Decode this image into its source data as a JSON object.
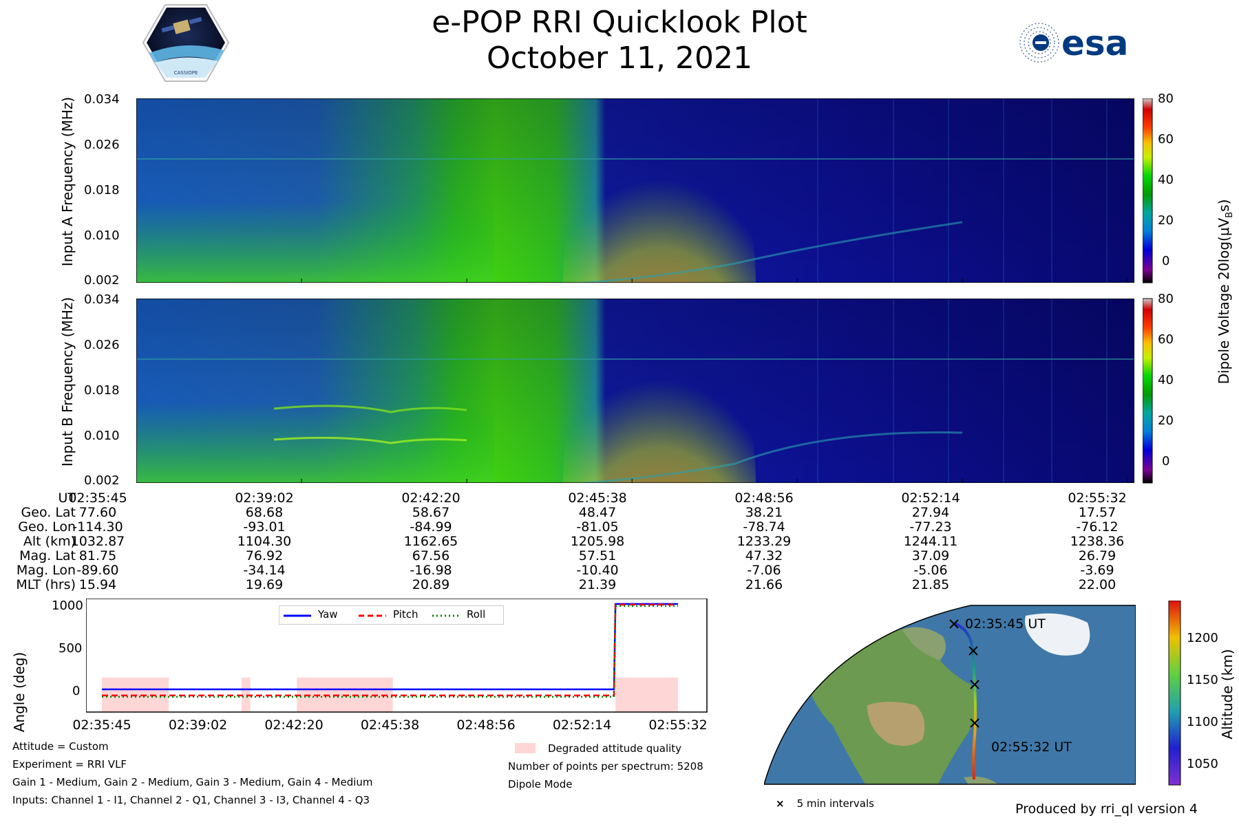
{
  "header": {
    "title_line1": "e-POP RRI Quicklook Plot",
    "title_line2": "October 11, 2021",
    "left_logo_text": "CASSIOPE",
    "right_logo_text": "esa"
  },
  "spectrogram_a": {
    "ylabel": "Input A Frequency (MHz)",
    "yticks": [
      "0.034",
      "0.026",
      "0.018",
      "0.010",
      "0.002"
    ]
  },
  "spectrogram_b": {
    "ylabel": "Input B Frequency (MHz)",
    "yticks": [
      "0.034",
      "0.026",
      "0.018",
      "0.010",
      "0.002"
    ]
  },
  "colorbar": {
    "label": "Dipole Voltage 20log(μV",
    "label_sub": "B",
    "label_end": "s)",
    "ticks": [
      "80",
      "60",
      "40",
      "20",
      "0"
    ]
  },
  "ephemeris": {
    "labels": [
      "UT",
      "Geo. Lat",
      "Geo. Lon",
      "Alt (km)",
      "Mag. Lat",
      "Mag. Lon",
      "MLT (hrs)"
    ],
    "columns": [
      [
        "02:35:45",
        "77.60",
        "-114.30",
        "1032.87",
        "81.75",
        "-89.60",
        "15.94"
      ],
      [
        "02:39:02",
        "68.68",
        "-93.01",
        "1104.30",
        "76.92",
        "-34.14",
        "19.69"
      ],
      [
        "02:42:20",
        "58.67",
        "-84.99",
        "1162.65",
        "67.56",
        "-16.98",
        "20.89"
      ],
      [
        "02:45:38",
        "48.47",
        "-81.05",
        "1205.98",
        "57.51",
        "-10.40",
        "21.39"
      ],
      [
        "02:48:56",
        "38.21",
        "-78.74",
        "1233.29",
        "47.32",
        "-7.06",
        "21.66"
      ],
      [
        "02:52:14",
        "27.94",
        "-77.23",
        "1244.11",
        "37.09",
        "-5.06",
        "21.85"
      ],
      [
        "02:55:32",
        "17.57",
        "-76.12",
        "1238.36",
        "26.79",
        "-3.69",
        "22.00"
      ]
    ]
  },
  "chart_data": [
    {
      "type": "heatmap",
      "title": "",
      "xlabel": "UT",
      "ylabel": "Input A Frequency (MHz)",
      "y_range": [
        0.002,
        0.034
      ],
      "x_range": [
        "02:35:45",
        "02:55:32"
      ],
      "z_range": [
        -10,
        80
      ],
      "colormap": "nipy_spectral"
    },
    {
      "type": "heatmap",
      "title": "",
      "xlabel": "UT",
      "ylabel": "Input B Frequency (MHz)",
      "y_range": [
        0.002,
        0.034
      ],
      "x_range": [
        "02:35:45",
        "02:55:32"
      ],
      "z_range": [
        -10,
        80
      ],
      "colormap": "nipy_spectral"
    },
    {
      "type": "line",
      "title": "",
      "xlabel": "",
      "ylabel": "Angle (deg)",
      "yticks": [
        "1000",
        "500",
        "0"
      ],
      "ylim": [
        -190,
        1060
      ],
      "xticks": [
        "02:35:45",
        "02:39:02",
        "02:42:20",
        "02:45:38",
        "02:48:56",
        "02:52:14",
        "02:55:32"
      ],
      "x_minutes": [
        0,
        17.6,
        17.65,
        19.8
      ],
      "series": [
        {
          "name": "Yaw",
          "color": "#0000ff",
          "values": [
            60,
            60,
            1000,
            1000
          ]
        },
        {
          "name": "Pitch",
          "color": "#ff0000",
          "values": [
            0,
            0,
            1000,
            1000
          ]
        },
        {
          "name": "Roll",
          "color": "#008000",
          "values": [
            0,
            0,
            1000,
            1000
          ]
        }
      ],
      "degraded_spans_minutes": [
        [
          0,
          2.3
        ],
        [
          4.8,
          5.1
        ],
        [
          6.7,
          10.0
        ],
        [
          17.65,
          19.8
        ]
      ],
      "legend": "top-center"
    }
  ],
  "info": {
    "left": [
      "Attitude = Custom",
      "Experiment = RRI VLF",
      "Gain 1 - Medium, Gain 2 - Medium, Gain 3 - Medium, Gain 4 - Medium",
      "Inputs: Channel 1 - I1, Channel 2 - Q1, Channel 3 - I3, Channel 4 - Q3"
    ],
    "legend_degraded": "Degraded attitude quality",
    "points": "Number of points per spectrum: 5208",
    "mode": "Dipole Mode"
  },
  "map": {
    "start_label": "02:35:45 UT",
    "end_label": "02:55:32 UT",
    "interval_legend": "5 min intervals",
    "altitude_label": "Altitude (km)",
    "altitude_ticks": [
      "1200",
      "1150",
      "1100",
      "1050"
    ]
  },
  "footer": "Produced by rri_ql version 4"
}
